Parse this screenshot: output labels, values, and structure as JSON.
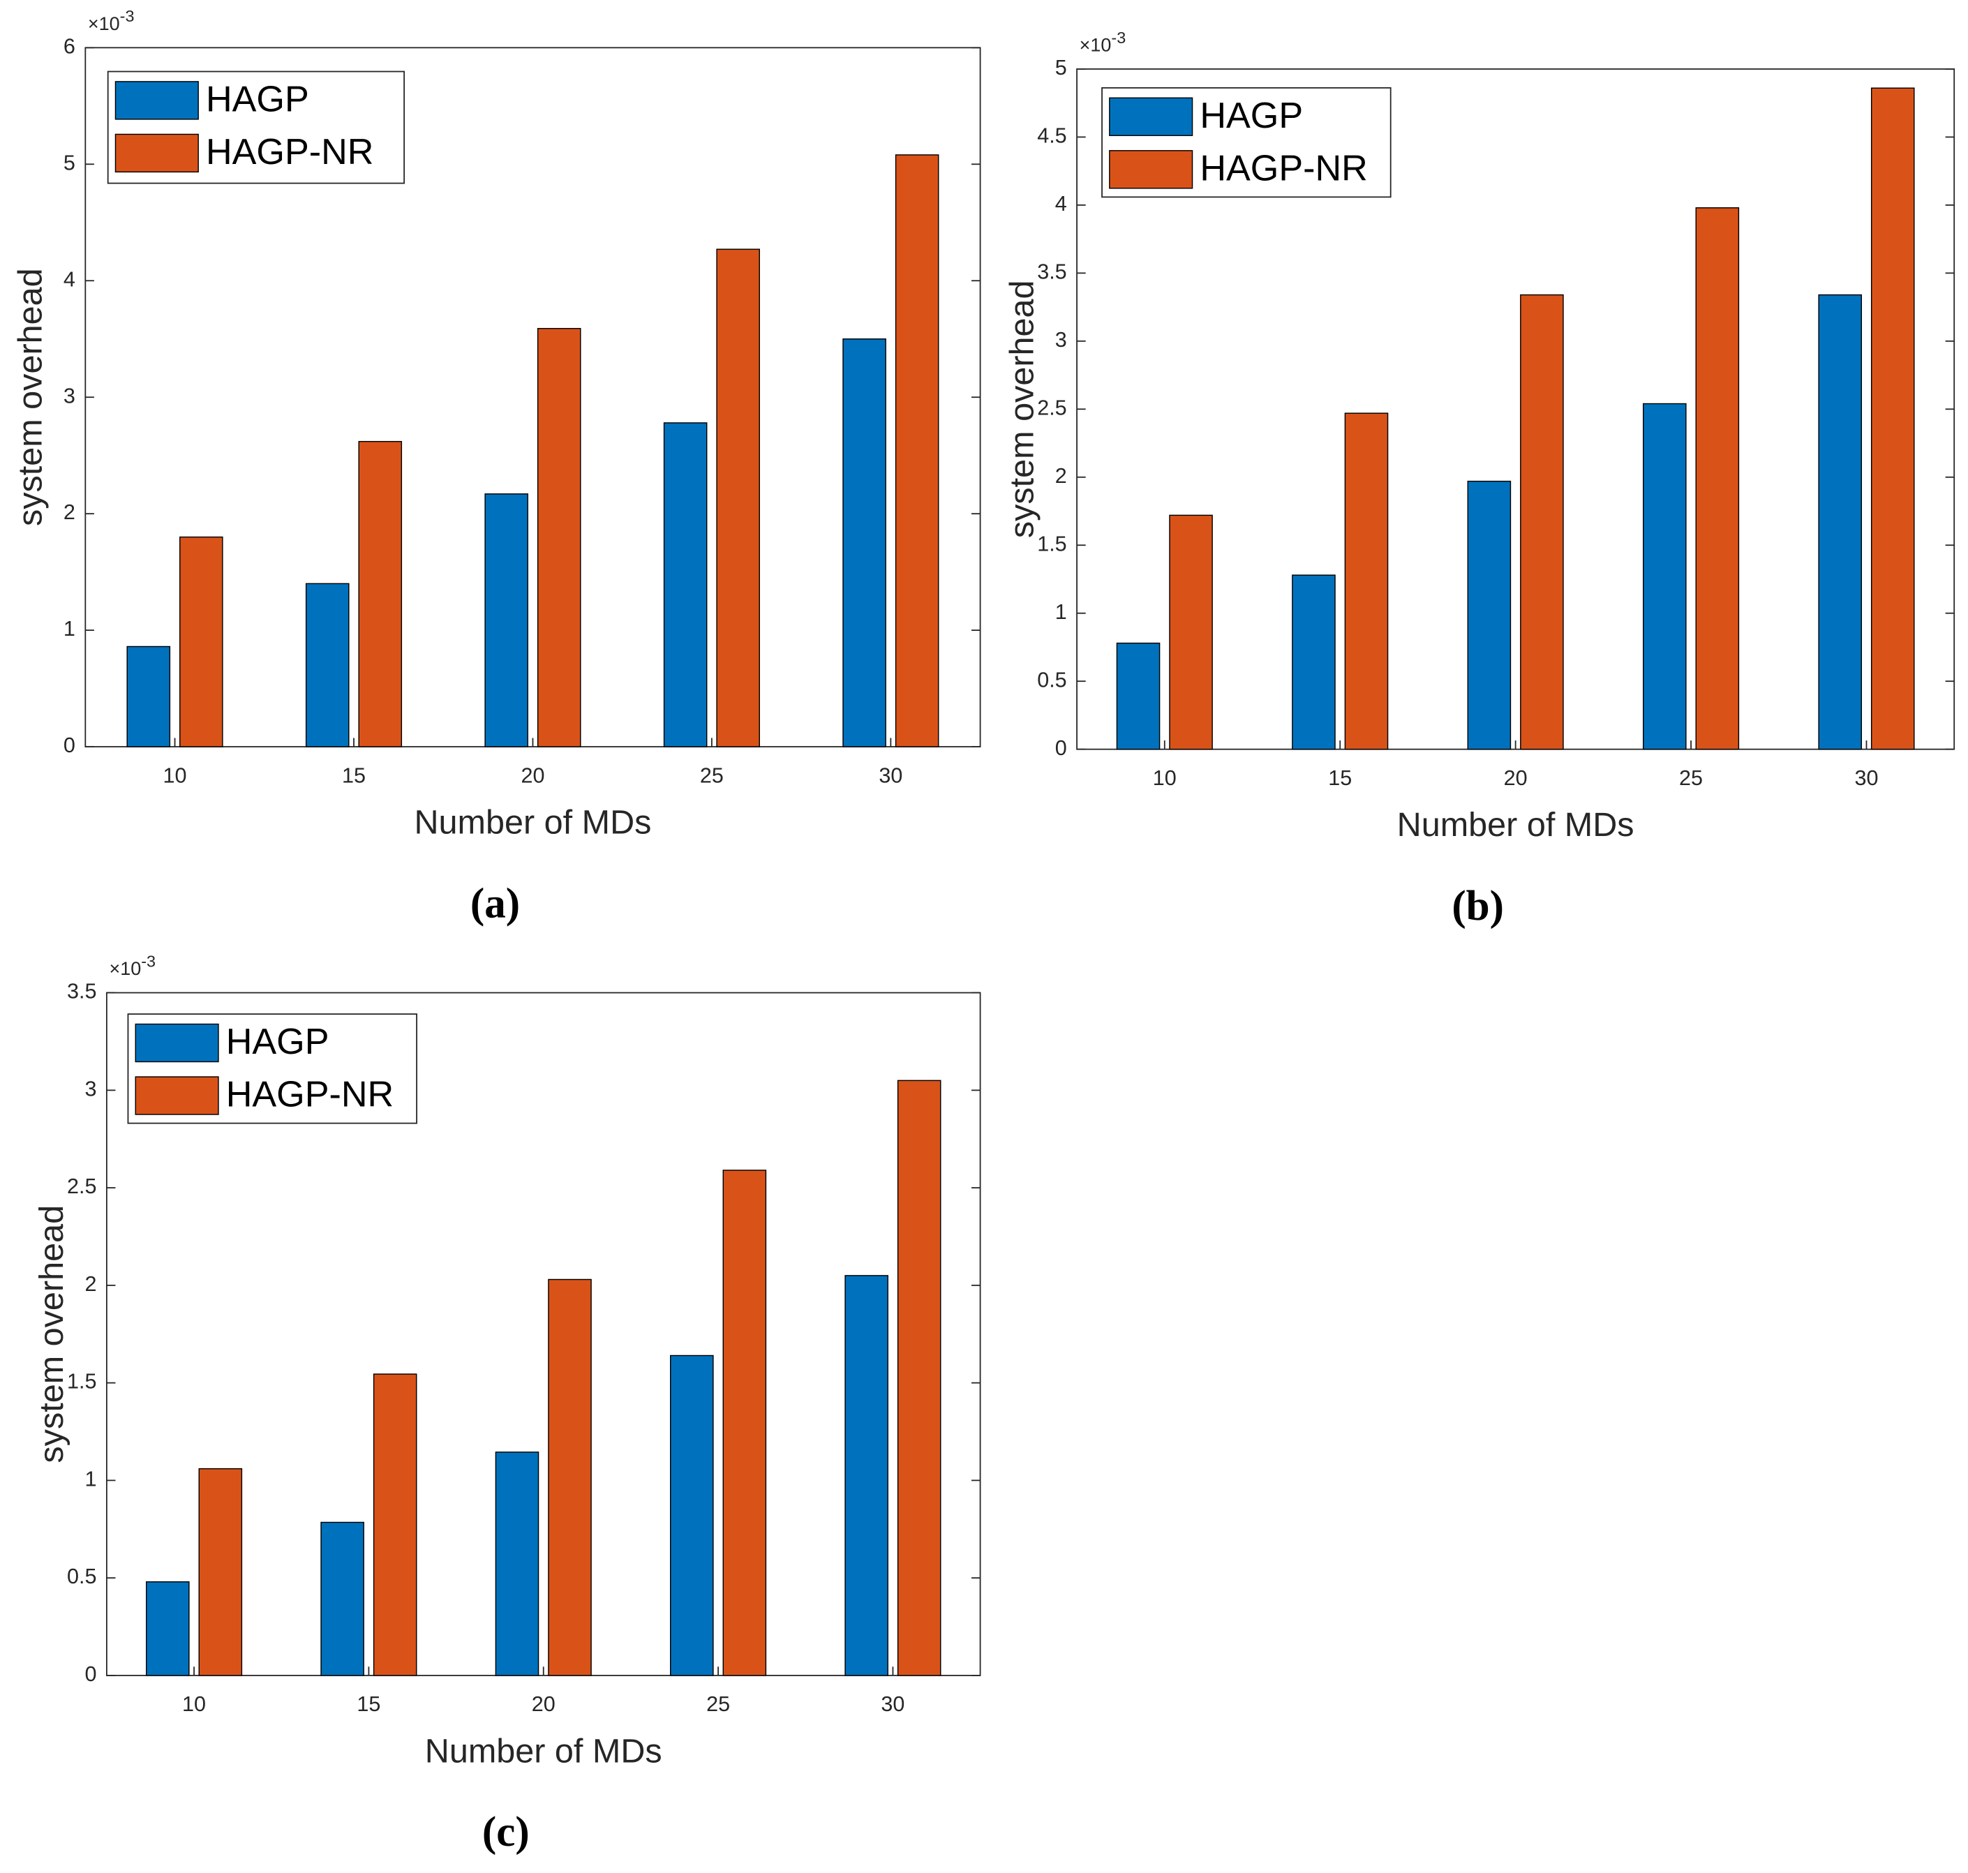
{
  "chart_data": [
    {
      "type": "bar",
      "label": "(a)",
      "x_label": "Number of MDs",
      "y_label": "system overhead",
      "y_multiplier": "×10",
      "y_exponent": "-3",
      "categories": [
        "10",
        "15",
        "20",
        "25",
        "30"
      ],
      "series": [
        {
          "name": "HAGP",
          "color": "#0072bd",
          "values": [
            0.86,
            1.4,
            2.17,
            2.78,
            3.5
          ]
        },
        {
          "name": "HAGP-NR",
          "color": "#d95319",
          "values": [
            1.8,
            2.62,
            3.59,
            4.27,
            5.08
          ]
        }
      ],
      "ylim": [
        0,
        6
      ],
      "yticks": [
        0,
        1,
        2,
        3,
        4,
        5,
        6
      ],
      "legend": "upper-left"
    },
    {
      "type": "bar",
      "label": "(b)",
      "x_label": "Number of MDs",
      "y_label": "system overhead",
      "y_multiplier": "×10",
      "y_exponent": "-3",
      "categories": [
        "10",
        "15",
        "20",
        "25",
        "30"
      ],
      "series": [
        {
          "name": "HAGP",
          "color": "#0072bd",
          "values": [
            0.78,
            1.28,
            1.97,
            2.54,
            3.34
          ]
        },
        {
          "name": "HAGP-NR",
          "color": "#d95319",
          "values": [
            1.72,
            2.47,
            3.34,
            3.98,
            4.86
          ]
        }
      ],
      "ylim": [
        0,
        5
      ],
      "yticks": [
        0,
        0.5,
        1,
        1.5,
        2,
        2.5,
        3,
        3.5,
        4,
        4.5,
        5
      ],
      "legend": "upper-left"
    },
    {
      "type": "bar",
      "label": "(c)",
      "x_label": "Number of MDs",
      "y_label": "system overhead",
      "y_multiplier": "×10",
      "y_exponent": "-3",
      "categories": [
        "10",
        "15",
        "20",
        "25",
        "30"
      ],
      "series": [
        {
          "name": "HAGP",
          "color": "#0072bd",
          "values": [
            0.48,
            0.785,
            1.145,
            1.64,
            2.05
          ]
        },
        {
          "name": "HAGP-NR",
          "color": "#d95319",
          "values": [
            1.06,
            1.545,
            2.03,
            2.59,
            3.05
          ]
        }
      ],
      "ylim": [
        0,
        3.5
      ],
      "yticks": [
        0,
        0.5,
        1,
        1.5,
        2,
        2.5,
        3,
        3.5
      ],
      "legend": "upper-left"
    }
  ]
}
